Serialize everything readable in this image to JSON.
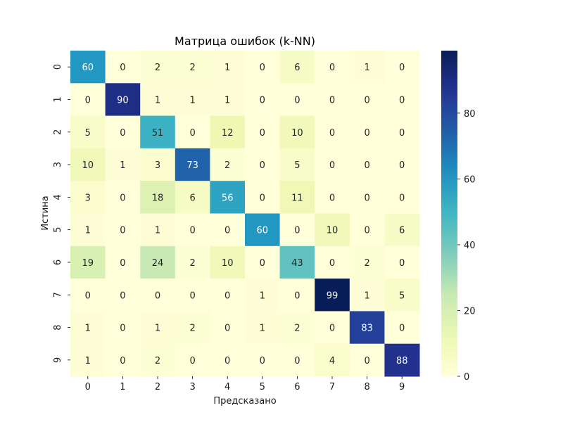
{
  "chart_data": {
    "type": "heatmap",
    "title": "Матрица ошибок (k-NN)",
    "xlabel": "Предсказано",
    "ylabel": "Истина",
    "x_categories": [
      "0",
      "1",
      "2",
      "3",
      "4",
      "5",
      "6",
      "7",
      "8",
      "9"
    ],
    "y_categories": [
      "0",
      "1",
      "2",
      "3",
      "4",
      "5",
      "6",
      "7",
      "8",
      "9"
    ],
    "values": [
      [
        60,
        0,
        2,
        2,
        1,
        0,
        6,
        0,
        1,
        0
      ],
      [
        0,
        90,
        1,
        1,
        1,
        0,
        0,
        0,
        0,
        0
      ],
      [
        5,
        0,
        51,
        0,
        12,
        0,
        10,
        0,
        0,
        0
      ],
      [
        10,
        1,
        3,
        73,
        2,
        0,
        5,
        0,
        0,
        0
      ],
      [
        3,
        0,
        18,
        6,
        56,
        0,
        11,
        0,
        0,
        0
      ],
      [
        1,
        0,
        1,
        0,
        0,
        60,
        0,
        10,
        0,
        6
      ],
      [
        19,
        0,
        24,
        2,
        10,
        0,
        43,
        0,
        2,
        0
      ],
      [
        0,
        0,
        0,
        0,
        0,
        1,
        0,
        99,
        1,
        5
      ],
      [
        1,
        0,
        1,
        2,
        0,
        1,
        2,
        0,
        83,
        0
      ],
      [
        1,
        0,
        2,
        0,
        0,
        0,
        0,
        4,
        0,
        88
      ]
    ],
    "colormap": "YlGnBu",
    "value_range": [
      0,
      99
    ],
    "colorbar_ticks": [
      0,
      20,
      40,
      60,
      80
    ],
    "grid": false
  }
}
